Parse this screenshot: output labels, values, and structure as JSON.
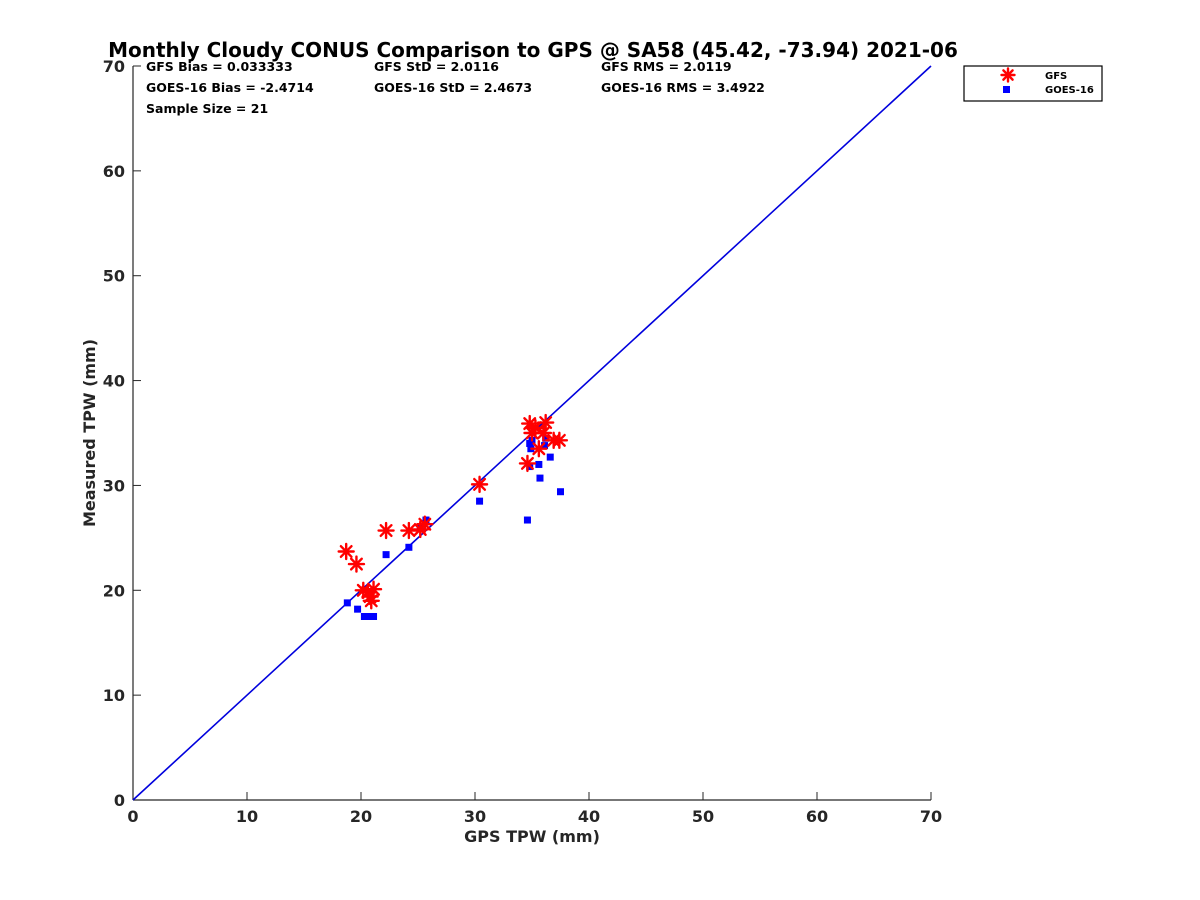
{
  "chart_data": {
    "type": "scatter",
    "title": "Monthly Cloudy CONUS Comparison to GPS @ SA58 (45.42, -73.94) 2021-06",
    "xlabel": "GPS TPW (mm)",
    "ylabel": "Measured TPW (mm)",
    "xlim": [
      0,
      70
    ],
    "ylim": [
      0,
      70
    ],
    "xticks": [
      0,
      10,
      20,
      30,
      40,
      50,
      60,
      70
    ],
    "yticks": [
      0,
      10,
      20,
      30,
      40,
      50,
      60,
      70
    ],
    "reference_line": {
      "name": "1:1",
      "color": "#0000dd",
      "from": [
        0,
        0
      ],
      "to": [
        70,
        70
      ]
    },
    "stats": [
      {
        "text": "GFS Bias = 0.033333"
      },
      {
        "text": "GFS StD = 2.0116"
      },
      {
        "text": "GFS RMS = 2.0119"
      },
      {
        "text": "GOES-16 Bias = -2.4714"
      },
      {
        "text": "GOES-16 StD = 2.4673"
      },
      {
        "text": "GOES-16 RMS = 3.4922"
      },
      {
        "text": "Sample Size = 21"
      }
    ],
    "legend_position": "top-right, outside axes",
    "series": [
      {
        "name": "GFS",
        "marker": "asterisk",
        "color": "#ff0000",
        "x": [
          18.7,
          19.6,
          20.2,
          20.6,
          20.8,
          20.9,
          21.1,
          22.2,
          24.2,
          25.2,
          25.6,
          30.4,
          34.6,
          34.8,
          35.0,
          35.3,
          35.6,
          36.0,
          36.2,
          36.9,
          37.4
        ],
        "y": [
          23.7,
          22.5,
          20.0,
          19.8,
          19.4,
          19.0,
          20.1,
          25.7,
          25.7,
          25.8,
          26.3,
          30.1,
          32.1,
          35.9,
          35.0,
          35.5,
          33.5,
          35.0,
          36.0,
          34.3,
          34.3
        ]
      },
      {
        "name": "GOES-16",
        "marker": "square",
        "color": "#0000ff",
        "x": [
          18.8,
          19.7,
          20.3,
          20.7,
          21.1,
          22.2,
          24.2,
          25.2,
          25.7,
          30.4,
          34.6,
          34.8,
          34.9,
          35.0,
          35.6,
          35.7,
          36.1,
          36.2,
          36.6,
          37.5,
          34.8
        ],
        "y": [
          18.8,
          18.2,
          17.5,
          17.5,
          17.5,
          23.4,
          24.1,
          25.9,
          26.7,
          28.5,
          26.7,
          31.8,
          33.5,
          34.3,
          32.0,
          30.7,
          33.8,
          34.5,
          32.7,
          29.4,
          34.0
        ]
      }
    ]
  }
}
